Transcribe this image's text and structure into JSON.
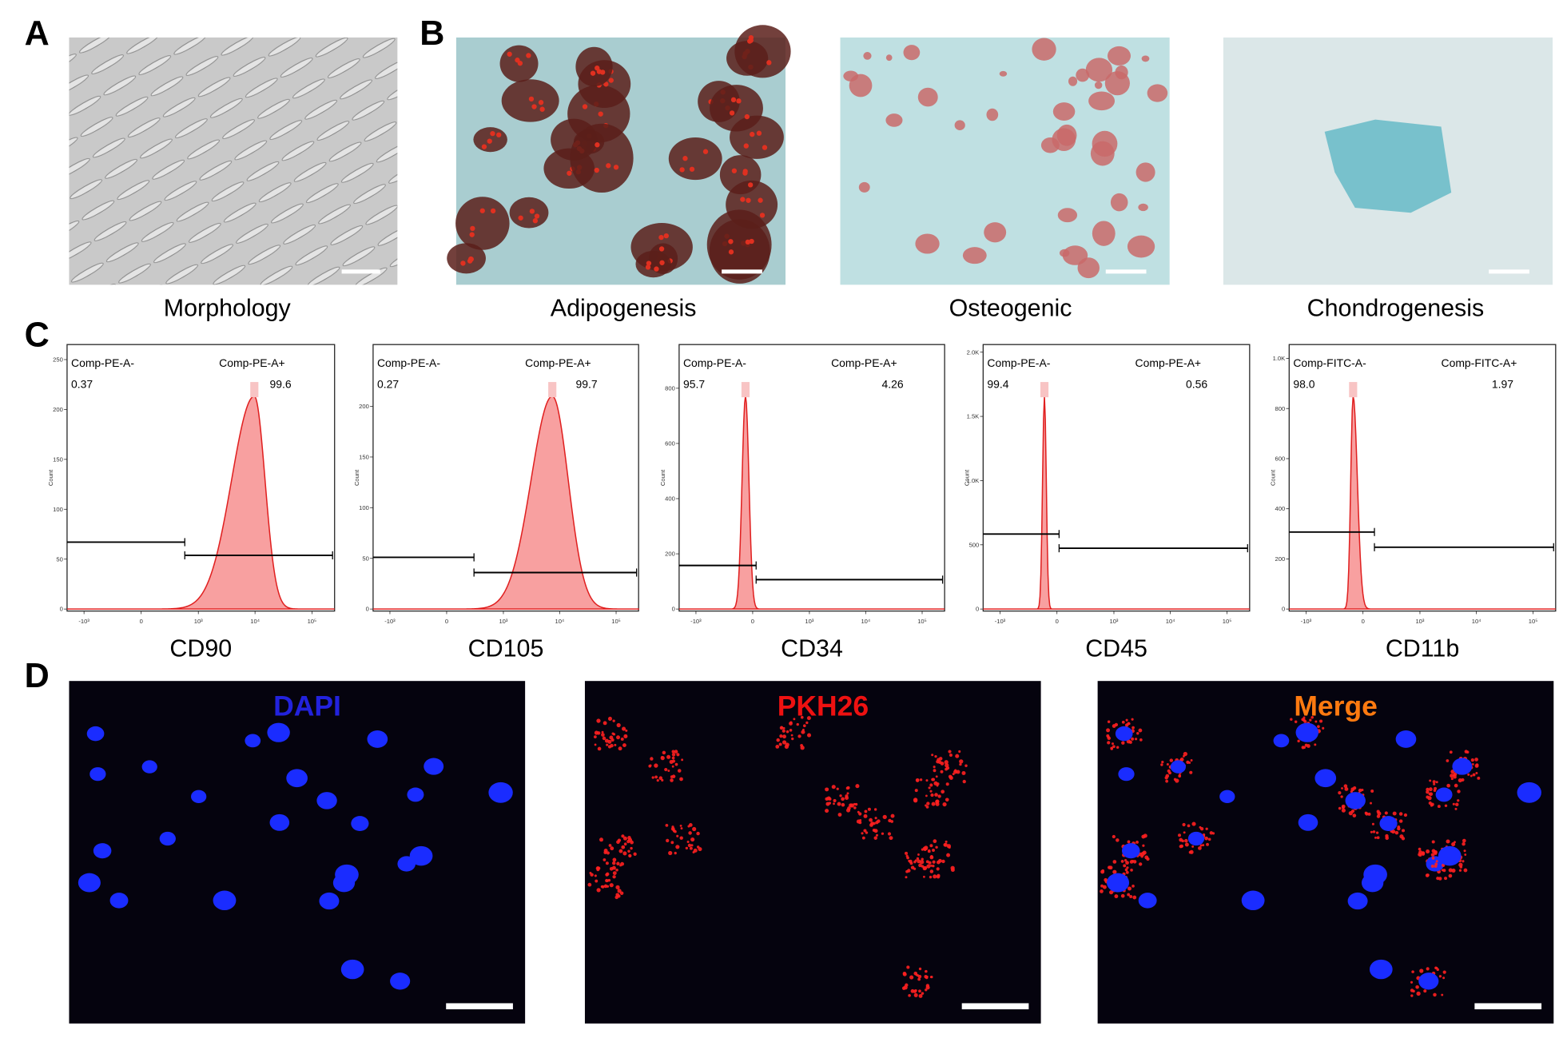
{
  "panels": {
    "A": {
      "letter": "A",
      "caption": "Morphology"
    },
    "B": {
      "letter": "B",
      "captions": [
        "Adipogenesis",
        "Osteogenic",
        "Chondrogenesis"
      ]
    },
    "C": {
      "letter": "C",
      "histograms": [
        {
          "marker": "CD90",
          "y_label": "Count",
          "gate_neg": "Comp-PE-A-",
          "gate_pos": "Comp-PE-A+",
          "neg_value": "0.37",
          "pos_value": "99.6",
          "ylim": [
            0,
            260
          ],
          "yticks": [
            0,
            50,
            100,
            150,
            200,
            250
          ],
          "xlim": [
            -2000,
            250000
          ],
          "xticks": [
            {
              "value": -1000,
              "label": "-10³"
            },
            0,
            {
              "value": 1000,
              "label": "10³"
            },
            {
              "value": 10000,
              "label": "10⁴"
            },
            {
              "value": 100000,
              "label": "10⁵"
            }
          ]
        },
        {
          "marker": "CD105",
          "y_label": "Count",
          "gate_neg": "Comp-PE-A-",
          "gate_pos": "Comp-PE-A+",
          "neg_value": "0.27",
          "pos_value": "99.7",
          "ylim": [
            0,
            256
          ],
          "yticks": [
            0,
            50,
            100,
            150,
            200
          ],
          "xlim": [
            -2000,
            250000
          ],
          "xticks": [
            {
              "value": -1000,
              "label": "-10³"
            },
            0,
            {
              "value": 1000,
              "label": "10³"
            },
            {
              "value": 10000,
              "label": "10⁴"
            },
            {
              "value": 100000,
              "label": "10⁵"
            }
          ]
        },
        {
          "marker": "CD34",
          "y_label": "Count",
          "gate_neg": "Comp-PE-A-",
          "gate_pos": "Comp-PE-A+",
          "neg_value": "95.7",
          "pos_value": "4.26",
          "ylim": [
            0,
            940
          ],
          "yticks": [
            0,
            200,
            400,
            600,
            800
          ],
          "xlim": [
            -2000,
            250000
          ],
          "xticks": [
            {
              "value": -1000,
              "label": "-10³"
            },
            0,
            {
              "value": 1000,
              "label": "10³"
            },
            {
              "value": 10000,
              "label": "10⁴"
            },
            {
              "value": 100000,
              "label": "10⁵"
            }
          ]
        },
        {
          "marker": "CD45",
          "y_label": "Count",
          "gate_neg": "Comp-PE-A-",
          "gate_pos": "Comp-PE-A+",
          "neg_value": "99.4",
          "pos_value": "0.56",
          "ylim": [
            0,
            2020
          ],
          "yticks": [
            0,
            500,
            {
              "value": 1000,
              "label": "1.0K"
            },
            {
              "value": 1500,
              "label": "1.5K"
            },
            {
              "value": 2000,
              "label": "2.0K"
            }
          ],
          "xlim": [
            -2000,
            250000
          ],
          "xticks": [
            {
              "value": -1000,
              "label": "-10³"
            },
            0,
            {
              "value": 1000,
              "label": "10³"
            },
            {
              "value": 10000,
              "label": "10⁴"
            },
            {
              "value": 100000,
              "label": "10⁵"
            }
          ]
        },
        {
          "marker": "CD11b",
          "y_label": "Count",
          "gate_neg": "Comp-FITC-A-",
          "gate_pos": "Comp-FITC-A+",
          "neg_value": "98.0",
          "pos_value": "1.97",
          "ylim": [
            0,
            1035
          ],
          "yticks": [
            0,
            200,
            400,
            600,
            800,
            {
              "value": 1000,
              "label": "1.0K"
            }
          ],
          "xlim": [
            -2000,
            250000
          ],
          "xticks": [
            {
              "value": -1000,
              "label": "-10³"
            },
            0,
            {
              "value": 1000,
              "label": "10³"
            },
            {
              "value": 10000,
              "label": "10⁴"
            },
            {
              "value": 100000,
              "label": "10⁵"
            }
          ]
        }
      ]
    },
    "D": {
      "letter": "D",
      "channels": [
        "DAPI",
        "PKH26",
        "Merge"
      ]
    }
  }
}
